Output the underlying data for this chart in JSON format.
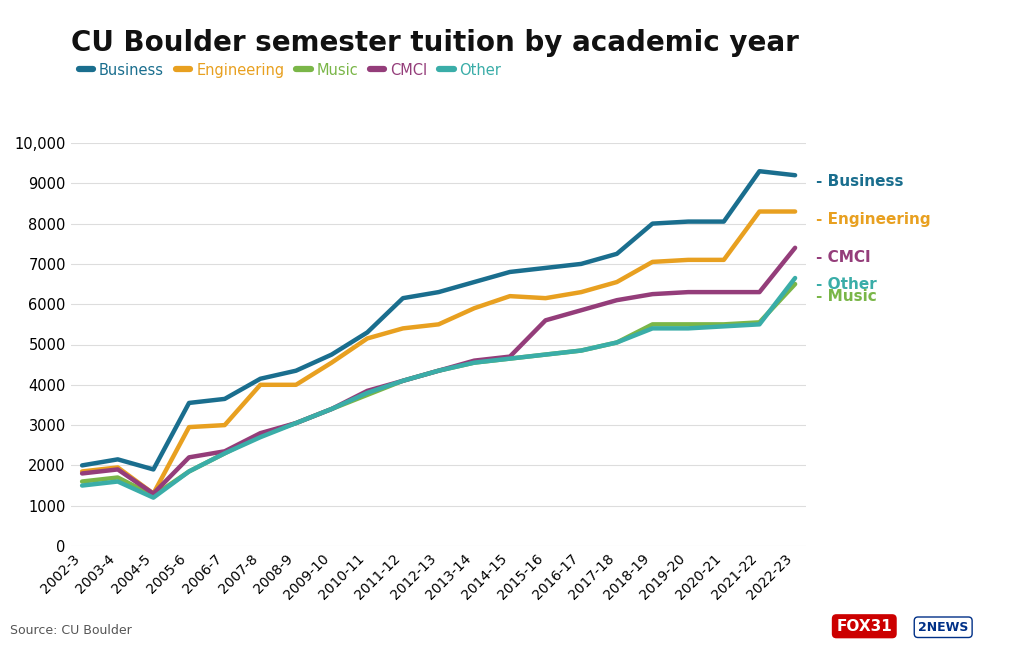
{
  "title": "CU Boulder semester tuition by academic year",
  "source": "Source: CU Boulder",
  "x_labels": [
    "2002-3",
    "2003-4",
    "2004-5",
    "2005-6",
    "2006-7",
    "2007-8",
    "2008-9",
    "2009-10",
    "2010-11",
    "2011-12",
    "2012-13",
    "2013-14",
    "2014-15",
    "2015-16",
    "2016-17",
    "2017-18",
    "2018-19",
    "2019-20",
    "2020-21",
    "2021-22",
    "2022-23"
  ],
  "series": [
    {
      "name": "Business",
      "color": "#1a6e8e",
      "linewidth": 3.2,
      "values": [
        2000,
        2150,
        1900,
        3550,
        3650,
        4150,
        4350,
        4750,
        5300,
        6150,
        6300,
        6550,
        6800,
        6900,
        7000,
        7250,
        8000,
        8050,
        8050,
        9300,
        9200
      ]
    },
    {
      "name": "Engineering",
      "color": "#e8a020",
      "linewidth": 3.2,
      "values": [
        1850,
        1950,
        1300,
        2950,
        3000,
        4000,
        4000,
        4550,
        5150,
        5400,
        5500,
        5900,
        6200,
        6150,
        6300,
        6550,
        7050,
        7100,
        7100,
        8300,
        8300
      ]
    },
    {
      "name": "Music",
      "color": "#7ab648",
      "linewidth": 3.2,
      "values": [
        1600,
        1700,
        1250,
        1850,
        2300,
        2750,
        3050,
        3400,
        3750,
        4100,
        4350,
        4550,
        4650,
        4750,
        4850,
        5050,
        5500,
        5500,
        5500,
        5550,
        6500
      ]
    },
    {
      "name": "CMCI",
      "color": "#943d7a",
      "linewidth": 3.2,
      "values": [
        1800,
        1900,
        1300,
        2200,
        2350,
        2800,
        3050,
        3400,
        3850,
        4100,
        4350,
        4600,
        4700,
        5600,
        5850,
        6100,
        6250,
        6300,
        6300,
        6300,
        7400
      ]
    },
    {
      "name": "Other",
      "color": "#3aada8",
      "linewidth": 3.2,
      "values": [
        1500,
        1600,
        1200,
        1850,
        2300,
        2700,
        3050,
        3400,
        3800,
        4100,
        4350,
        4550,
        4650,
        4750,
        4850,
        5050,
        5400,
        5400,
        5450,
        5500,
        6650
      ]
    }
  ],
  "ylim": [
    0,
    10000
  ],
  "yticks": [
    0,
    1000,
    2000,
    3000,
    4000,
    5000,
    6000,
    7000,
    8000,
    9000,
    10000
  ],
  "ytick_labels": [
    "0",
    "1000",
    "2000",
    "3000",
    "4000",
    "5000",
    "6000",
    "7000",
    "8000",
    "9000",
    "10,000"
  ],
  "bg_color": "#ffffff",
  "grid_color": "#dddddd",
  "title_fontsize": 20,
  "label_fontsize": 10.5,
  "legend_fontsize": 10.5,
  "inline_label_fontsize": 11,
  "inline_label_positions": {
    "Business": {
      "y": 9050
    },
    "Engineering": {
      "y": 8100
    },
    "CMCI": {
      "y": 7150
    },
    "Other": {
      "y": 6500
    },
    "Music": {
      "y": 6200
    }
  }
}
